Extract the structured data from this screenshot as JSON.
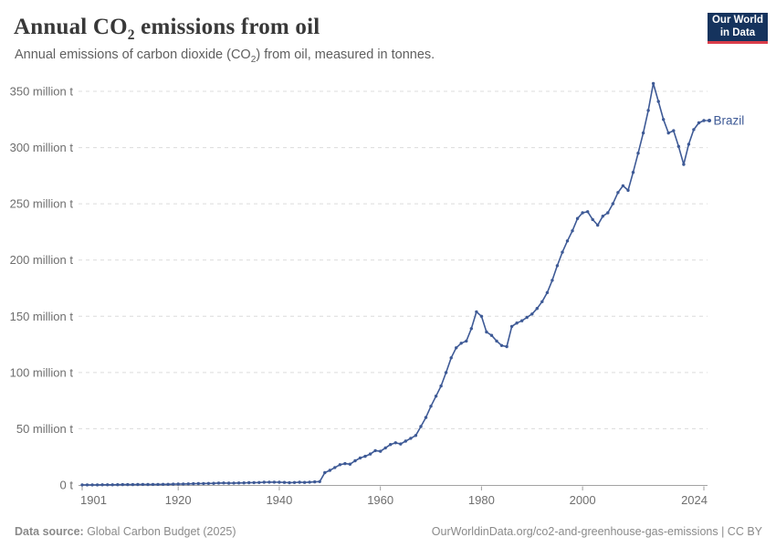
{
  "header": {
    "title_prefix": "Annual CO",
    "title_sub": "2",
    "title_suffix": " emissions from oil",
    "subtitle_prefix": "Annual emissions of carbon dioxide (CO",
    "subtitle_sub": "2",
    "subtitle_suffix": ") from oil, measured in tonnes.",
    "logo_line1": "Our World",
    "logo_line2": "in Data"
  },
  "footer": {
    "source_label": "Data source:",
    "source_value": " Global Carbon Budget (2025)",
    "link_text": "OurWorldinData.org/co2-and-greenhouse-gas-emissions | CC BY"
  },
  "colors": {
    "line": "#3e5a96",
    "gridline": "#dcdcdc",
    "axis": "#a3a3a3",
    "tick": "#9e9e9e",
    "axis_label": "#6e6e6e",
    "logo_bg": "#15335d",
    "logo_red": "#d93d4a",
    "title_text": "#383838",
    "subtitle_text": "#5f5f5f",
    "footer_text": "#8a8a8a"
  },
  "chart_data": {
    "type": "line",
    "title": "Annual CO2 emissions from oil",
    "unit": "tonnes (shown as million t)",
    "grid": "dashed-horizontal",
    "legend_position": "end-of-line label",
    "ylim": [
      0,
      350
    ],
    "xlim": [
      1901,
      2024
    ],
    "y_ticks": [
      {
        "label": "0 t",
        "value": 0
      },
      {
        "label": "50 million t",
        "value": 50
      },
      {
        "label": "100 million t",
        "value": 100
      },
      {
        "label": "150 million t",
        "value": 150
      },
      {
        "label": "200 million t",
        "value": 200
      },
      {
        "label": "250 million t",
        "value": 250
      },
      {
        "label": "300 million t",
        "value": 300
      },
      {
        "label": "350 million t",
        "value": 350
      }
    ],
    "x_ticks": [
      1901,
      1920,
      1940,
      1960,
      1980,
      2000,
      2024
    ],
    "x": [
      1901,
      1902,
      1903,
      1904,
      1905,
      1906,
      1907,
      1908,
      1909,
      1910,
      1911,
      1912,
      1913,
      1914,
      1915,
      1916,
      1917,
      1918,
      1919,
      1920,
      1921,
      1922,
      1923,
      1924,
      1925,
      1926,
      1927,
      1928,
      1929,
      1930,
      1931,
      1932,
      1933,
      1934,
      1935,
      1936,
      1937,
      1938,
      1939,
      1940,
      1941,
      1942,
      1943,
      1944,
      1945,
      1946,
      1947,
      1948,
      1949,
      1950,
      1951,
      1952,
      1953,
      1954,
      1955,
      1956,
      1957,
      1958,
      1959,
      1960,
      1961,
      1962,
      1963,
      1964,
      1965,
      1966,
      1967,
      1968,
      1969,
      1970,
      1971,
      1972,
      1973,
      1974,
      1975,
      1976,
      1977,
      1978,
      1979,
      1980,
      1981,
      1982,
      1983,
      1984,
      1985,
      1986,
      1987,
      1988,
      1989,
      1990,
      1991,
      1992,
      1993,
      1994,
      1995,
      1996,
      1997,
      1998,
      1999,
      2000,
      2001,
      2002,
      2003,
      2004,
      2005,
      2006,
      2007,
      2008,
      2009,
      2010,
      2011,
      2012,
      2013,
      2014,
      2015,
      2016,
      2017,
      2018,
      2019,
      2020,
      2021,
      2022,
      2023,
      2024
    ],
    "series": [
      {
        "name": "Brazil",
        "values_unit": "million tonnes CO2",
        "values": [
          0.1,
          0.1,
          0.1,
          0.1,
          0.15,
          0.2,
          0.2,
          0.25,
          0.3,
          0.3,
          0.35,
          0.4,
          0.45,
          0.4,
          0.45,
          0.5,
          0.55,
          0.6,
          0.7,
          0.8,
          0.9,
          1.0,
          1.1,
          1.2,
          1.3,
          1.4,
          1.5,
          1.7,
          1.8,
          1.6,
          1.7,
          1.8,
          1.9,
          2.0,
          2.1,
          2.2,
          2.4,
          2.5,
          2.5,
          2.4,
          2.3,
          2.0,
          2.2,
          2.4,
          2.3,
          2.5,
          2.8,
          3.0,
          11,
          13,
          15.5,
          18,
          19,
          18.5,
          21.5,
          24,
          25.5,
          27.5,
          30.5,
          30,
          33,
          36,
          37.5,
          36.5,
          39,
          41.5,
          44,
          52,
          60,
          70,
          79,
          88,
          100,
          113,
          122,
          126,
          128,
          139,
          154,
          150,
          136,
          133,
          128,
          124,
          123,
          141,
          144,
          146,
          149,
          152,
          157,
          163,
          171,
          182,
          195,
          207,
          217,
          226,
          237,
          242,
          243,
          236,
          231,
          239,
          242,
          250,
          260,
          266,
          262,
          278,
          295,
          313,
          333,
          357,
          341,
          325,
          313,
          315,
          301,
          285,
          303,
          316,
          322,
          324
        ]
      }
    ]
  }
}
